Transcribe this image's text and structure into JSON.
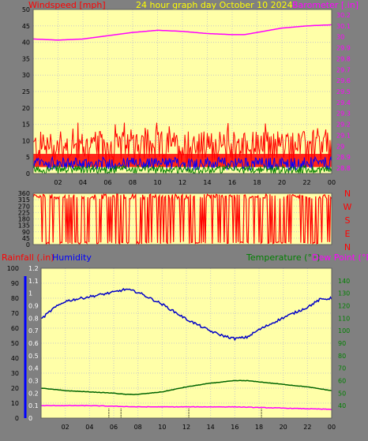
{
  "colors": {
    "background": "#808080",
    "plot_bg": "#ffffa8",
    "grid": "#c8c8c8",
    "wind": "#ff0000",
    "gust": "#ff0000",
    "avg_wind": "#0000ff",
    "low_wind": "#008000",
    "barometer": "#ff00ff",
    "humidity": "#0000c8",
    "temperature": "#006400",
    "dewpoint": "#ff00ff",
    "rain": "#0000ff",
    "title": "#ffff00",
    "wind_label": "#ff0000",
    "rh_label": "#0000ff",
    "temp_label": "#008000",
    "dp_label": "#ff00ff",
    "axis_text": "#000000",
    "baro_text": "#ff00ff",
    "rain_text": "#ffffff"
  },
  "header": {
    "title": "24 hour graph day   October 10 2024"
  },
  "chart_data": [
    {
      "type": "line",
      "panel": "wind",
      "ylabel": "Windspeed [mph]",
      "y2label": "Barometer [.in]",
      "x_ticks": [
        "02",
        "04",
        "06",
        "08",
        "10",
        "12",
        "14",
        "16",
        "18",
        "20",
        "22",
        "00"
      ],
      "ylim": [
        0,
        50
      ],
      "y_ticks": [
        0,
        5,
        10,
        15,
        20,
        25,
        30,
        35,
        40,
        45,
        50
      ],
      "y2lim": [
        28.75,
        30.25
      ],
      "y2_ticks": [
        28.8,
        28.9,
        29.0,
        29.1,
        29.2,
        29.3,
        29.4,
        29.5,
        29.6,
        29.7,
        29.8,
        29.9,
        30.0,
        30.1,
        30.2
      ],
      "y2_tick_labels": [
        "28.8",
        "28.9",
        "29",
        "29.1",
        "29.2",
        "29.3",
        "29.4",
        "29.5",
        "29.6",
        "29.7",
        "29.8",
        "29.9",
        "30",
        "30.1",
        "30.2"
      ],
      "barometer": {
        "hours": [
          0,
          2,
          4,
          6,
          8,
          10,
          12,
          14,
          16,
          17,
          18,
          20,
          22,
          24
        ],
        "values": [
          29.98,
          29.97,
          29.98,
          30.01,
          30.04,
          30.06,
          30.05,
          30.03,
          30.02,
          30.02,
          30.04,
          30.08,
          30.1,
          30.11
        ]
      },
      "wind_bands": {
        "gust_max": 15,
        "gust_min": 2,
        "avg_max": 5,
        "low_max": 2.5
      }
    },
    {
      "type": "bar",
      "panel": "direction",
      "ylim": [
        0,
        360
      ],
      "y_ticks": [
        0,
        45,
        90,
        135,
        180,
        225,
        270,
        315,
        360
      ],
      "right_labels": [
        "N",
        "W",
        "S",
        "E",
        "N"
      ],
      "pattern": "mostly 315-360 degrees with frequent drops to near 0"
    },
    {
      "type": "line",
      "panel": "temp",
      "left_label_rain": "Rainfall (.in)",
      "left_label_rh": "Humidity",
      "right_label_temp": "Temperature (°F)",
      "right_label_dp": "Dew Point (°F)",
      "x_ticks": [
        "02",
        "04",
        "06",
        "08",
        "10",
        "12",
        "14",
        "16",
        "18",
        "20",
        "22",
        "00"
      ],
      "rh_lim": [
        0,
        100
      ],
      "rh_ticks": [
        0,
        10,
        20,
        30,
        40,
        50,
        60,
        70,
        80,
        90,
        100
      ],
      "rain_lim": [
        0,
        1.2
      ],
      "rain_ticks": [
        "0",
        "0.1",
        "0.2",
        "0.3",
        "0.4",
        "0.5",
        "0.6",
        "0.7",
        "0.8",
        "0.9",
        "1",
        "1.1",
        "1.2"
      ],
      "temp_lim": [
        30,
        150
      ],
      "temp_ticks": [
        40,
        50,
        60,
        70,
        80,
        90,
        100,
        110,
        120,
        130,
        140
      ],
      "humidity": {
        "hours": [
          0,
          1,
          2,
          4,
          6,
          7,
          8,
          10,
          12,
          14,
          15,
          16,
          17,
          18,
          20,
          22,
          23,
          24
        ],
        "values": [
          66,
          73,
          78,
          81,
          84,
          86,
          84,
          76,
          66,
          58,
          55,
          53,
          54,
          59,
          67,
          74,
          79,
          80
        ]
      },
      "temperature": {
        "hours": [
          0,
          2,
          4,
          6,
          7,
          8,
          10,
          12,
          14,
          16,
          17,
          18,
          20,
          22,
          24
        ],
        "values": [
          54,
          52,
          51,
          50,
          49,
          49,
          51,
          55,
          58,
          60,
          60,
          59,
          57,
          55,
          52
        ]
      },
      "dewpoint": {
        "hours": [
          0,
          4,
          8,
          12,
          16,
          20,
          24
        ],
        "values": [
          40,
          40,
          39,
          39,
          39,
          38,
          37
        ]
      },
      "rain_markers_hours": [
        5.6,
        6.6,
        12.2,
        18.2
      ]
    }
  ]
}
